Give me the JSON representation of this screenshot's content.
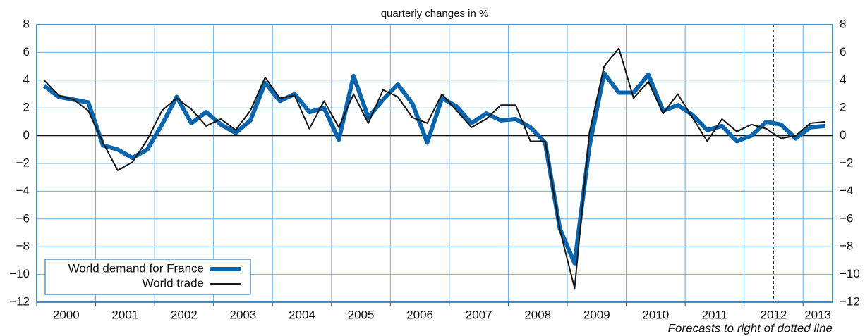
{
  "chart_data": {
    "type": "line",
    "title": "quarterly changes in %",
    "note": "Forecasts to right of dotted line",
    "forecast_start": 2012.5,
    "x": [
      2000.125,
      2000.375,
      2000.625,
      2000.875,
      2001.125,
      2001.375,
      2001.625,
      2001.875,
      2002.125,
      2002.375,
      2002.625,
      2002.875,
      2003.125,
      2003.375,
      2003.625,
      2003.875,
      2004.125,
      2004.375,
      2004.625,
      2004.875,
      2005.125,
      2005.375,
      2005.625,
      2005.875,
      2006.125,
      2006.375,
      2006.625,
      2006.875,
      2007.125,
      2007.375,
      2007.625,
      2007.875,
      2008.125,
      2008.375,
      2008.625,
      2008.875,
      2009.125,
      2009.375,
      2009.625,
      2009.875,
      2010.125,
      2010.375,
      2010.625,
      2010.875,
      2011.125,
      2011.375,
      2011.625,
      2011.875,
      2012.125,
      2012.375,
      2012.625,
      2012.875,
      2013.125,
      2013.375
    ],
    "series": [
      {
        "name": "World demand for France",
        "color": "#0b65ad",
        "width": 6,
        "values": [
          3.6,
          2.8,
          2.6,
          2.4,
          -0.7,
          -1.0,
          -1.6,
          -1.0,
          0.8,
          2.8,
          0.9,
          1.7,
          0.8,
          0.2,
          1.1,
          3.8,
          2.5,
          3.0,
          1.7,
          2.0,
          -0.3,
          4.3,
          1.3,
          2.6,
          3.7,
          2.3,
          -0.5,
          2.7,
          2.1,
          0.9,
          1.6,
          1.1,
          1.2,
          0.6,
          -0.5,
          -6.7,
          -9.2,
          -0.8,
          4.5,
          3.1,
          3.1,
          4.4,
          1.8,
          2.2,
          1.5,
          0.4,
          0.7,
          -0.4,
          0.0,
          1.0,
          0.8,
          -0.2,
          0.6,
          0.7
        ]
      },
      {
        "name": "World trade",
        "color": "#151515",
        "width": 2,
        "values": [
          4.0,
          2.9,
          2.6,
          1.8,
          -0.5,
          -2.5,
          -1.9,
          -0.3,
          1.8,
          2.7,
          1.9,
          0.7,
          1.2,
          0.4,
          1.8,
          4.2,
          2.7,
          2.9,
          0.5,
          2.5,
          0.6,
          3.0,
          0.9,
          3.3,
          2.8,
          1.3,
          0.9,
          3.0,
          1.8,
          0.6,
          1.2,
          2.2,
          2.2,
          -0.4,
          -0.4,
          -6.8,
          -11.0,
          0.2,
          5.0,
          6.3,
          2.7,
          3.9,
          1.6,
          3.0,
          1.3,
          -0.4,
          1.2,
          0.3,
          0.8,
          0.5,
          -0.2,
          0.0,
          0.9,
          1.0
        ]
      }
    ],
    "xlim": [
      2000,
      2013.5
    ],
    "xticks": [
      2000,
      2001,
      2002,
      2003,
      2004,
      2005,
      2006,
      2007,
      2008,
      2009,
      2010,
      2011,
      2012,
      2013
    ],
    "ylim": [
      -12,
      8
    ],
    "yticks": [
      {
        "value": -12,
        "label": "−12"
      },
      {
        "value": -10,
        "label": "−10"
      },
      {
        "value": -8,
        "label": "−8"
      },
      {
        "value": -6,
        "label": "−6"
      },
      {
        "value": -4,
        "label": "−4"
      },
      {
        "value": -2,
        "label": "−2"
      },
      0,
      2,
      4,
      6,
      8
    ],
    "grid": true,
    "legend": "bottom-left"
  }
}
